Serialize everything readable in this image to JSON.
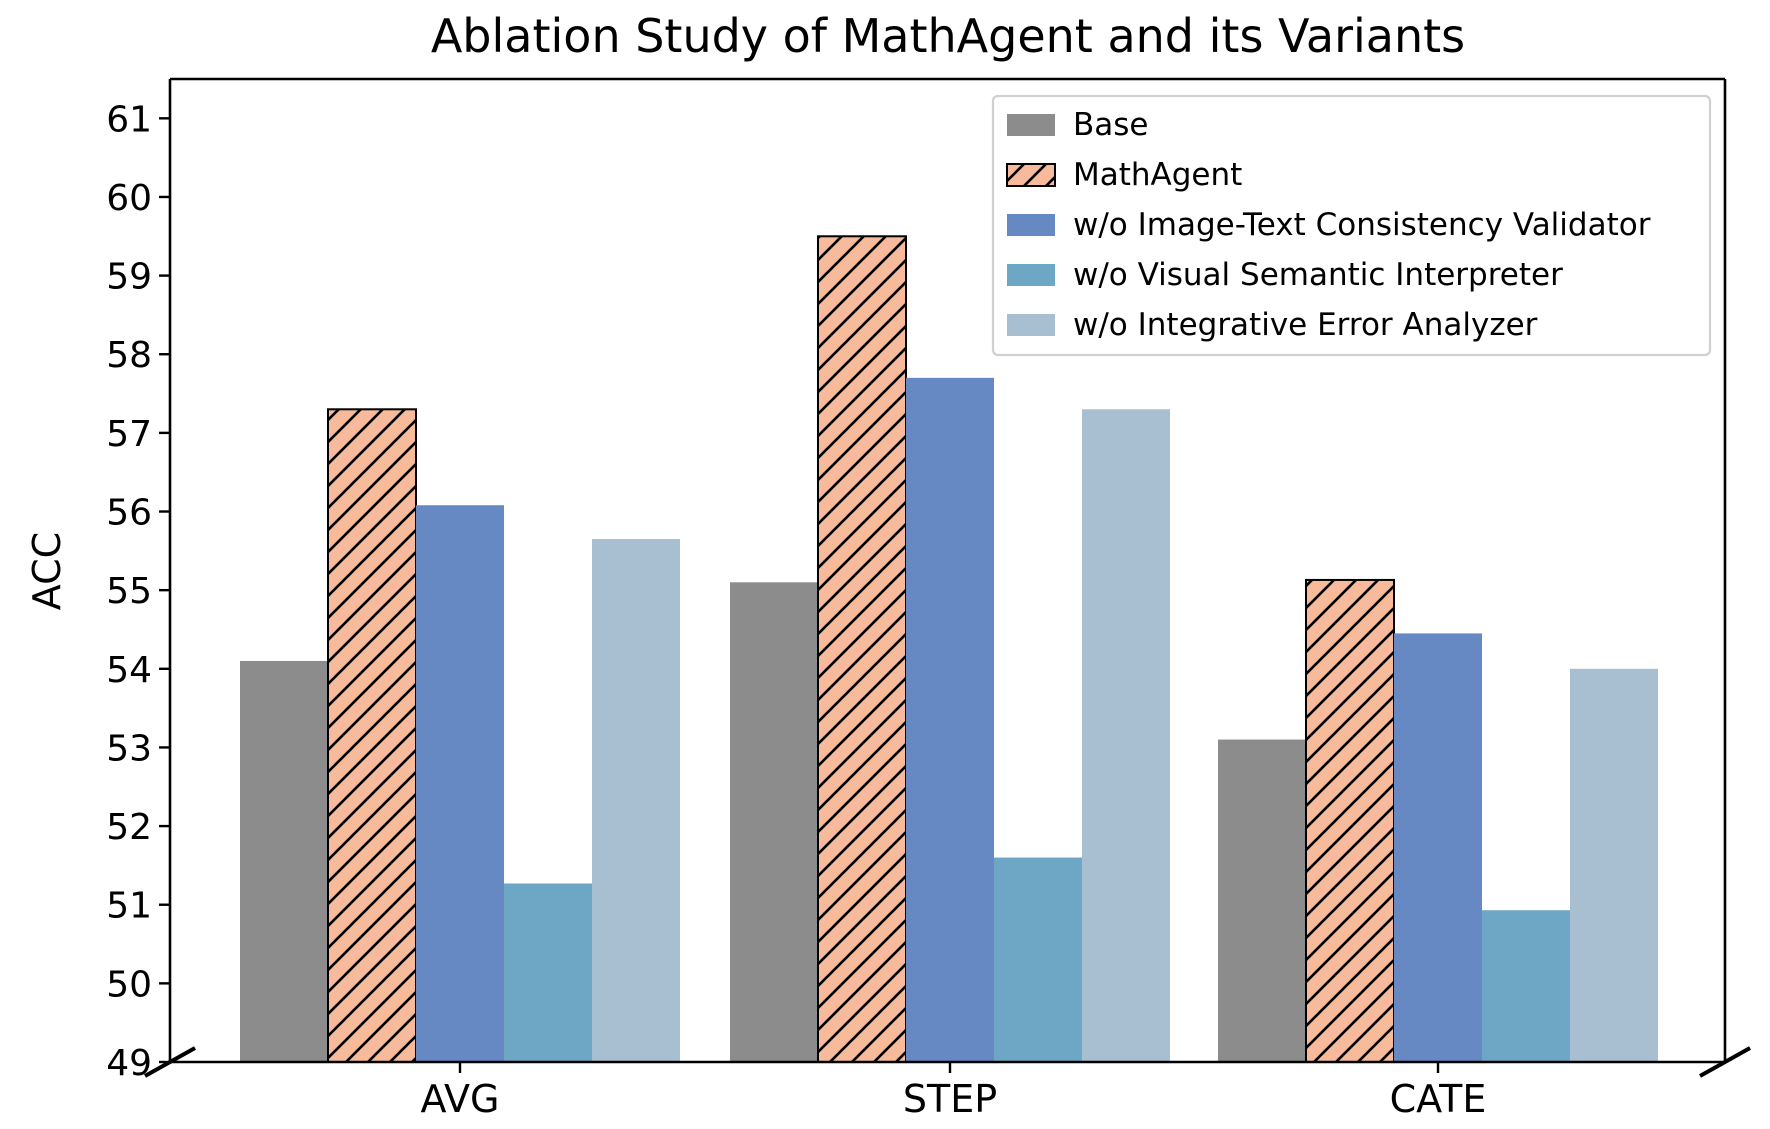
{
  "chart_data": {
    "type": "bar",
    "title": "Ablation Study of MathAgent and its Variants",
    "xlabel": "",
    "ylabel": "ACC",
    "ylim": [
      49,
      61.5
    ],
    "yticks": [
      "49",
      "50",
      "51",
      "52",
      "53",
      "54",
      "55",
      "56",
      "57",
      "58",
      "59",
      "60",
      "61"
    ],
    "categories": [
      "AVG",
      "STEP",
      "CATE"
    ],
    "legend_position": "top-right",
    "axis_break": true,
    "series": [
      {
        "name": "Base",
        "values": [
          54.1,
          55.1,
          53.1
        ],
        "color": "#8c8c8c",
        "hatch": false
      },
      {
        "name": "MathAgent",
        "values": [
          57.3,
          59.5,
          55.13
        ],
        "color": "#f7bb9c",
        "hatch": true
      },
      {
        "name": "w/o Image-Text Consistency Validator",
        "values": [
          56.08,
          57.7,
          54.45
        ],
        "color": "#6689c3",
        "hatch": false
      },
      {
        "name": "w/o Visual Semantic Interpreter",
        "values": [
          51.27,
          51.6,
          50.93
        ],
        "color": "#6ea7c6",
        "hatch": false
      },
      {
        "name": "w/o Integrative Error Analyzer",
        "values": [
          55.65,
          57.3,
          54.0
        ],
        "color": "#a7bfd1",
        "hatch": false
      }
    ]
  }
}
